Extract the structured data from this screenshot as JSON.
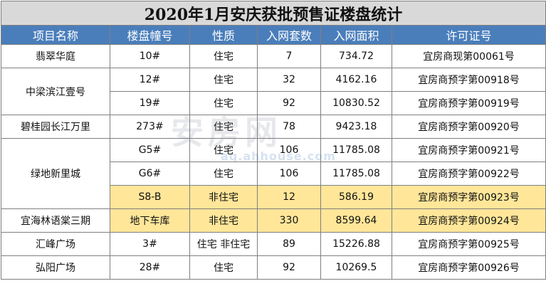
{
  "title": "2020年1月安庆获批预售证楼盘统计",
  "headers": [
    "项目名称",
    "楼盘幢号",
    "性质",
    "入网套数",
    "入网面积",
    "许可证号"
  ],
  "rows": [
    {
      "project": "翡翠华庭",
      "building": "10#",
      "type": "住宅",
      "units": "7",
      "area": "734.72",
      "permit": "宜房商现第00061号"
    },
    {
      "project": "中梁滨江壹号",
      "building": "12#",
      "type": "住宅",
      "units": "32",
      "area": "4162.16",
      "permit": "宜房商预字第00918号"
    },
    {
      "project": "",
      "building": "19#",
      "type": "住宅",
      "units": "92",
      "area": "10830.52",
      "permit": "宜房商预字第00919号"
    },
    {
      "project": "碧桂园长江万里",
      "building": "273#",
      "type": "住宅",
      "units": "78",
      "area": "9423.18",
      "permit": "宜房商预字第00920号"
    },
    {
      "project": "绿地新里城",
      "building": "G5#",
      "type": "住宅",
      "units": "106",
      "area": "11785.08",
      "permit": "宜房商预字第00921号"
    },
    {
      "project": "",
      "building": "G6#",
      "type": "住宅",
      "units": "106",
      "area": "11785.08",
      "permit": "宜房商预字第00922号"
    },
    {
      "project": "",
      "building": "S8-B",
      "type": "非住宅",
      "units": "12",
      "area": "586.19",
      "permit": "宜房商预字第00923号"
    },
    {
      "project": "宜海林语棠三期",
      "building": "地下车库",
      "type": "非住宅",
      "units": "330",
      "area": "8599.64",
      "permit": "宜房商预字第00924号"
    },
    {
      "project": "汇峰广场",
      "building": "3#",
      "type": "住宅 非住宅",
      "units": "89",
      "area": "15226.88",
      "permit": "宜房商预字第00925号"
    },
    {
      "project": "弘阳广场",
      "building": "28#",
      "type": "住宅",
      "units": "92",
      "area": "10269.5",
      "permit": "宜房商预字第00926号"
    }
  ],
  "watermark": {
    "main": "安房网",
    "sub": "aq.ahhouse.com"
  },
  "colors": {
    "header_bg": "#4a7ebb",
    "title_bg": "#d9d9d9",
    "highlight": "#ffe699"
  }
}
